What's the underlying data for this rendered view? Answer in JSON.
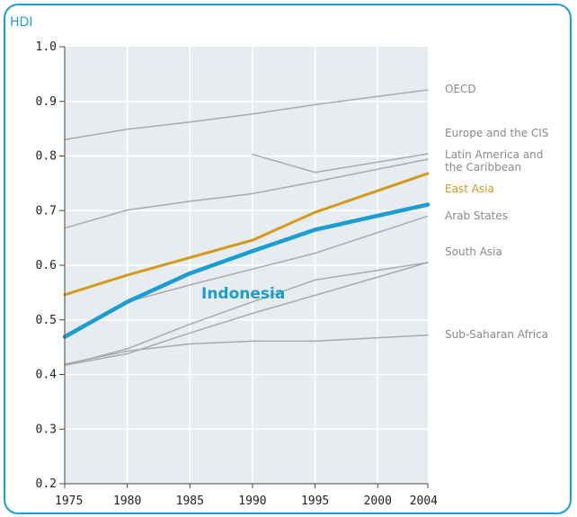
{
  "chart_data": {
    "type": "line",
    "ylabel": "HDI",
    "xlabel": "",
    "title": "",
    "xlim": [
      1975,
      2004
    ],
    "ylim": [
      0.2,
      1.0
    ],
    "grid": true,
    "x_ticks": [
      "1975",
      "1980",
      "1985",
      "1990",
      "1995",
      "2000",
      "2004"
    ],
    "y_ticks": [
      "0.2",
      "0.3",
      "0.4",
      "0.5",
      "0.6",
      "0.7",
      "0.8",
      "0.9",
      "1.0"
    ],
    "series": [
      {
        "name": "OECD",
        "color": "#aaaaaa",
        "style": "thin",
        "points": [
          [
            1975,
            0.83
          ],
          [
            1980,
            0.849
          ],
          [
            1985,
            0.862
          ],
          [
            1990,
            0.877
          ],
          [
            1995,
            0.894
          ],
          [
            2004,
            0.921
          ]
        ]
      },
      {
        "name": "Europe and the CIS",
        "color": "#aaaaaa",
        "style": "thin",
        "points": [
          [
            1990,
            0.803
          ],
          [
            1995,
            0.77
          ],
          [
            2004,
            0.804
          ]
        ]
      },
      {
        "name": "Latin America and the Caribbean",
        "color": "#aaaaaa",
        "style": "thin",
        "points": [
          [
            1975,
            0.668
          ],
          [
            1980,
            0.701
          ],
          [
            1985,
            0.717
          ],
          [
            1990,
            0.731
          ],
          [
            1995,
            0.753
          ],
          [
            2004,
            0.794
          ]
        ]
      },
      {
        "name": "East Asia",
        "color": "#d39a1b",
        "style": "highlight",
        "points": [
          [
            1975,
            0.546
          ],
          [
            1980,
            0.582
          ],
          [
            1985,
            0.614
          ],
          [
            1990,
            0.646
          ],
          [
            1995,
            0.697
          ],
          [
            2004,
            0.768
          ]
        ]
      },
      {
        "name": "Arab States",
        "color": "#aaaaaa",
        "style": "thin",
        "points": [
          [
            1975,
            0.417
          ],
          [
            1980,
            0.447
          ],
          [
            1985,
            0.492
          ],
          [
            1990,
            0.533
          ],
          [
            1995,
            0.573
          ],
          [
            2004,
            0.605
          ]
        ]
      },
      {
        "name": "South Asia",
        "color": "#aaaaaa",
        "style": "thin",
        "points": [
          [
            1975,
            0.417
          ],
          [
            1980,
            0.438
          ],
          [
            1985,
            0.476
          ],
          [
            1990,
            0.512
          ],
          [
            1995,
            0.545
          ],
          [
            2004,
            0.605
          ]
        ]
      },
      {
        "name": "Sub-Saharan Africa",
        "color": "#aaaaaa",
        "style": "thin",
        "points": [
          [
            1975,
            0.419
          ],
          [
            1980,
            0.443
          ],
          [
            1985,
            0.456
          ],
          [
            1990,
            0.461
          ],
          [
            1995,
            0.461
          ],
          [
            2004,
            0.472
          ]
        ]
      },
      {
        "name": "Indonesia",
        "color": "#1a9dd1",
        "style": "main",
        "points": [
          [
            1975,
            0.469
          ],
          [
            1980,
            0.533
          ],
          [
            1985,
            0.585
          ],
          [
            1990,
            0.626
          ],
          [
            1995,
            0.665
          ],
          [
            2004,
            0.711
          ]
        ]
      }
    ],
    "extra_line": {
      "name": "",
      "color": "#aaaaaa",
      "points": [
        [
          1980,
          0.533
        ],
        [
          1985,
          0.564
        ],
        [
          1990,
          0.593
        ],
        [
          1995,
          0.622
        ],
        [
          2004,
          0.69
        ]
      ]
    },
    "legend_labels": [
      {
        "series": "OECD",
        "text": [
          "OECD"
        ],
        "style": "gray"
      },
      {
        "series": "Europe and the CIS",
        "text": [
          "Europe and the CIS"
        ],
        "style": "gray"
      },
      {
        "series": "Latin America and the Caribbean",
        "text": [
          "Latin America and",
          "the Caribbean"
        ],
        "style": "gray"
      },
      {
        "series": "East Asia",
        "text": [
          "East Asia"
        ],
        "style": "highlight"
      },
      {
        "series": "Arab States",
        "text": [
          "Arab States"
        ],
        "style": "gray"
      },
      {
        "series": "South Asia",
        "text": [
          "South Asia"
        ],
        "style": "gray"
      },
      {
        "series": "Sub-Saharan Africa",
        "text": [
          "Sub-Saharan Africa"
        ],
        "style": "gray"
      }
    ],
    "inline_label": "Indonesia"
  }
}
